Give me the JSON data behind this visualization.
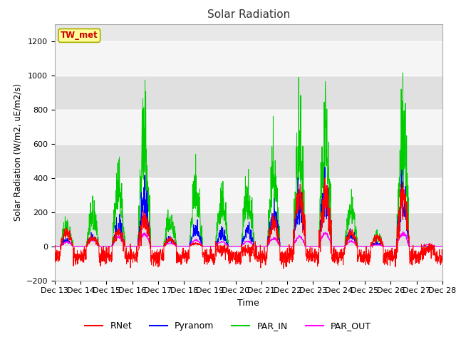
{
  "title": "Solar Radiation",
  "ylabel": "Solar Radiation (W/m2, uE/m2/s)",
  "xlabel": "Time",
  "ylim": [
    -200,
    1300
  ],
  "yticks": [
    -200,
    0,
    200,
    400,
    600,
    800,
    1000,
    1200
  ],
  "legend_labels": [
    "RNet",
    "Pyranom",
    "PAR_IN",
    "PAR_OUT"
  ],
  "legend_colors": [
    "#ff0000",
    "#0000ff",
    "#00cc00",
    "#ff00ff"
  ],
  "annotation_text": "TW_met",
  "annotation_bg": "#ffff99",
  "annotation_fg": "#cc0000",
  "annotation_border": "#aaaa00",
  "x_tick_labels": [
    "Dec 13",
    "Dec 14",
    "Dec 15",
    "Dec 16",
    "Dec 17",
    "Dec 18",
    "Dec 19",
    "Dec 20",
    "Dec 21",
    "Dec 22",
    "Dec 23",
    "Dec 24",
    "Dec 25",
    "Dec 26",
    "Dec 27",
    "Dec 28"
  ],
  "n_per_day": 144,
  "n_days": 15,
  "fig_bg": "#ffffff",
  "plot_bg": "#e8e8e8",
  "band_color": "#d0d0d0",
  "grid_color": "#ffffff"
}
